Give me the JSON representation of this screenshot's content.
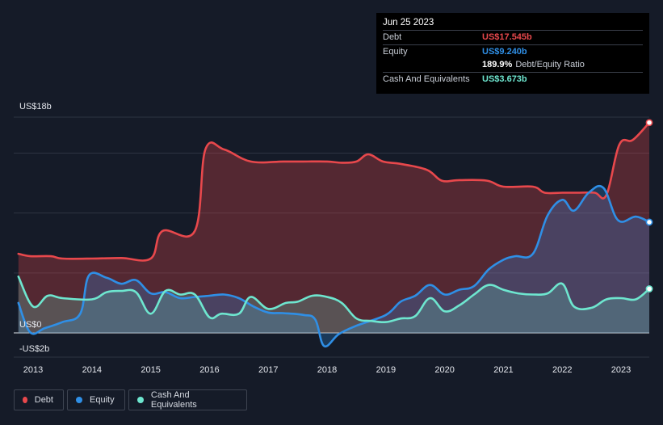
{
  "tooltip": {
    "date": "Jun 25 2023",
    "rows": [
      {
        "label": "Debt",
        "value": "US$17.545b"
      },
      {
        "label": "Equity",
        "value": "US$9.240b"
      },
      {
        "label": "",
        "value": "189.9%",
        "suffix": "Debt/Equity Ratio"
      },
      {
        "label": "Cash And Equivalents",
        "value": "US$3.673b"
      }
    ]
  },
  "legend": [
    {
      "name": "Debt"
    },
    {
      "name": "Equity"
    },
    {
      "name": "Cash And Equivalents"
    }
  ],
  "colors": {
    "debt": "#e8484c",
    "equity": "#2f8fe6",
    "cash": "#6ee6cf",
    "background": "#151b28"
  },
  "chart_data": {
    "type": "area",
    "y_ticks": [
      {
        "value": 18,
        "label": "US$18b"
      },
      {
        "value": 0,
        "label": "US$0"
      },
      {
        "value": -2,
        "label": "-US$2b"
      }
    ],
    "ylim": [
      -2,
      18
    ],
    "x_ticks": [
      2013,
      2014,
      2015,
      2016,
      2017,
      2018,
      2019,
      2020,
      2021,
      2022,
      2023
    ],
    "xlim": [
      2012.67,
      2023.48
    ],
    "grid": true,
    "series": [
      {
        "name": "Debt",
        "points": [
          [
            2012.75,
            6.6
          ],
          [
            2012.95,
            6.4
          ],
          [
            2013.3,
            6.4
          ],
          [
            2013.5,
            6.2
          ],
          [
            2014.0,
            6.2
          ],
          [
            2014.5,
            6.25
          ],
          [
            2015.0,
            6.2
          ],
          [
            2015.2,
            8.5
          ],
          [
            2015.75,
            8.5
          ],
          [
            2015.93,
            15.3
          ],
          [
            2016.25,
            15.3
          ],
          [
            2016.7,
            14.3
          ],
          [
            2017.25,
            14.3
          ],
          [
            2017.6,
            14.3
          ],
          [
            2018.0,
            14.3
          ],
          [
            2018.25,
            14.2
          ],
          [
            2018.5,
            14.3
          ],
          [
            2018.7,
            14.9
          ],
          [
            2018.95,
            14.3
          ],
          [
            2019.25,
            14.1
          ],
          [
            2019.7,
            13.6
          ],
          [
            2019.95,
            12.7
          ],
          [
            2020.25,
            12.75
          ],
          [
            2020.72,
            12.7
          ],
          [
            2021.0,
            12.2
          ],
          [
            2021.5,
            12.2
          ],
          [
            2021.7,
            11.7
          ],
          [
            2022.0,
            11.7
          ],
          [
            2022.25,
            11.7
          ],
          [
            2022.55,
            11.7
          ],
          [
            2022.75,
            11.5
          ],
          [
            2022.97,
            15.7
          ],
          [
            2023.2,
            16.1
          ],
          [
            2023.48,
            17.545
          ]
        ]
      },
      {
        "name": "Equity",
        "points": [
          [
            2012.75,
            2.5
          ],
          [
            2012.95,
            0.05
          ],
          [
            2013.2,
            0.4
          ],
          [
            2013.5,
            0.9
          ],
          [
            2013.8,
            1.6
          ],
          [
            2013.95,
            4.8
          ],
          [
            2014.25,
            4.6
          ],
          [
            2014.5,
            4.1
          ],
          [
            2014.75,
            4.4
          ],
          [
            2015.0,
            3.3
          ],
          [
            2015.25,
            3.4
          ],
          [
            2015.5,
            2.9
          ],
          [
            2015.75,
            3.0
          ],
          [
            2016.0,
            3.1
          ],
          [
            2016.25,
            3.2
          ],
          [
            2016.5,
            2.9
          ],
          [
            2016.75,
            2.2
          ],
          [
            2017.0,
            1.7
          ],
          [
            2017.25,
            1.65
          ],
          [
            2017.6,
            1.5
          ],
          [
            2017.8,
            1.1
          ],
          [
            2017.95,
            -1.1
          ],
          [
            2018.2,
            -0.1
          ],
          [
            2018.5,
            0.6
          ],
          [
            2019.0,
            1.5
          ],
          [
            2019.25,
            2.6
          ],
          [
            2019.5,
            3.1
          ],
          [
            2019.75,
            4.0
          ],
          [
            2020.0,
            3.2
          ],
          [
            2020.25,
            3.6
          ],
          [
            2020.5,
            3.9
          ],
          [
            2020.75,
            5.3
          ],
          [
            2021.0,
            6.1
          ],
          [
            2021.2,
            6.4
          ],
          [
            2021.5,
            6.6
          ],
          [
            2021.75,
            9.8
          ],
          [
            2022.0,
            11.1
          ],
          [
            2022.2,
            10.2
          ],
          [
            2022.45,
            11.7
          ],
          [
            2022.7,
            12.1
          ],
          [
            2022.95,
            9.4
          ],
          [
            2023.25,
            9.7
          ],
          [
            2023.48,
            9.24
          ]
        ]
      },
      {
        "name": "Cash And Equivalents",
        "points": [
          [
            2012.75,
            4.7
          ],
          [
            2013.0,
            2.2
          ],
          [
            2013.25,
            3.1
          ],
          [
            2013.5,
            2.9
          ],
          [
            2014.0,
            2.8
          ],
          [
            2014.25,
            3.4
          ],
          [
            2014.5,
            3.5
          ],
          [
            2014.75,
            3.4
          ],
          [
            2015.0,
            1.6
          ],
          [
            2015.25,
            3.5
          ],
          [
            2015.5,
            3.2
          ],
          [
            2015.75,
            3.2
          ],
          [
            2016.0,
            1.3
          ],
          [
            2016.2,
            1.6
          ],
          [
            2016.5,
            1.6
          ],
          [
            2016.7,
            3.0
          ],
          [
            2017.0,
            2.0
          ],
          [
            2017.3,
            2.5
          ],
          [
            2017.5,
            2.6
          ],
          [
            2017.75,
            3.1
          ],
          [
            2018.0,
            3.0
          ],
          [
            2018.25,
            2.5
          ],
          [
            2018.5,
            1.2
          ],
          [
            2018.75,
            1.0
          ],
          [
            2019.0,
            0.9
          ],
          [
            2019.25,
            1.2
          ],
          [
            2019.5,
            1.4
          ],
          [
            2019.75,
            2.9
          ],
          [
            2020.0,
            1.8
          ],
          [
            2020.25,
            2.3
          ],
          [
            2020.5,
            3.2
          ],
          [
            2020.75,
            4.0
          ],
          [
            2021.0,
            3.6
          ],
          [
            2021.25,
            3.3
          ],
          [
            2021.5,
            3.2
          ],
          [
            2021.75,
            3.3
          ],
          [
            2022.0,
            4.1
          ],
          [
            2022.2,
            2.2
          ],
          [
            2022.5,
            2.1
          ],
          [
            2022.75,
            2.8
          ],
          [
            2023.0,
            2.9
          ],
          [
            2023.25,
            2.8
          ],
          [
            2023.48,
            3.673
          ]
        ]
      }
    ]
  }
}
